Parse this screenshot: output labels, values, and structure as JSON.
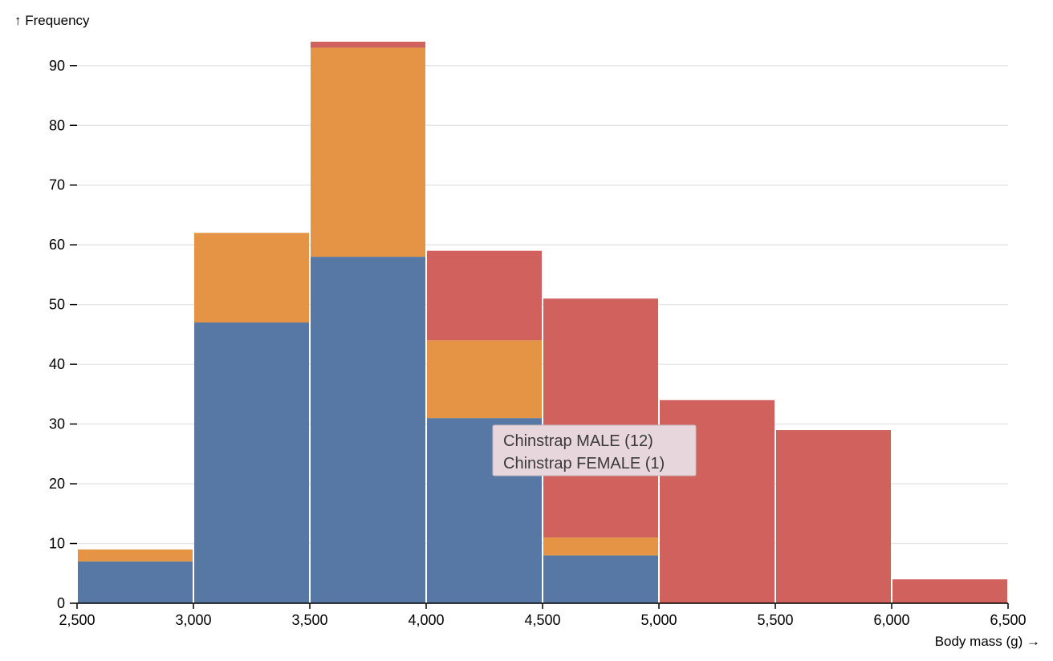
{
  "chart_data": {
    "type": "bar",
    "stacked": true,
    "xlabel": "Body mass (g) →",
    "ylabel": "↑ Frequency",
    "x_domain": [
      2500,
      6500
    ],
    "x_ticks": [
      2500,
      3000,
      3500,
      4000,
      4500,
      5000,
      5500,
      6000,
      6500
    ],
    "x_tick_labels": [
      "2,500",
      "3,000",
      "3,500",
      "4,000",
      "4,500",
      "5,000",
      "5,500",
      "6,000",
      "6,500"
    ],
    "y_domain": [
      0,
      94
    ],
    "y_ticks": [
      0,
      10,
      20,
      30,
      40,
      50,
      60,
      70,
      80,
      90
    ],
    "y_tick_labels": [
      "0",
      "10",
      "20",
      "30",
      "40",
      "50",
      "60",
      "70",
      "80",
      "90"
    ],
    "grid": "horizontal",
    "bins": [
      [
        2500,
        3000
      ],
      [
        3000,
        3500
      ],
      [
        3500,
        4000
      ],
      [
        4000,
        4500
      ],
      [
        4500,
        5000
      ],
      [
        5000,
        5500
      ],
      [
        5500,
        6000
      ],
      [
        6000,
        6500
      ]
    ],
    "series": [
      {
        "color": "#5778a4",
        "values": [
          7,
          47,
          58,
          31,
          8,
          0,
          0,
          0
        ]
      },
      {
        "color": "#e49444",
        "values": [
          2,
          15,
          35,
          13,
          3,
          0,
          0,
          0
        ]
      },
      {
        "color": "#d1615d",
        "values": [
          0,
          0,
          1,
          15,
          40,
          34,
          29,
          4
        ]
      }
    ]
  },
  "tooltip": {
    "lines": [
      "Chinstrap MALE (12)",
      "Chinstrap FEMALE (1)"
    ]
  }
}
